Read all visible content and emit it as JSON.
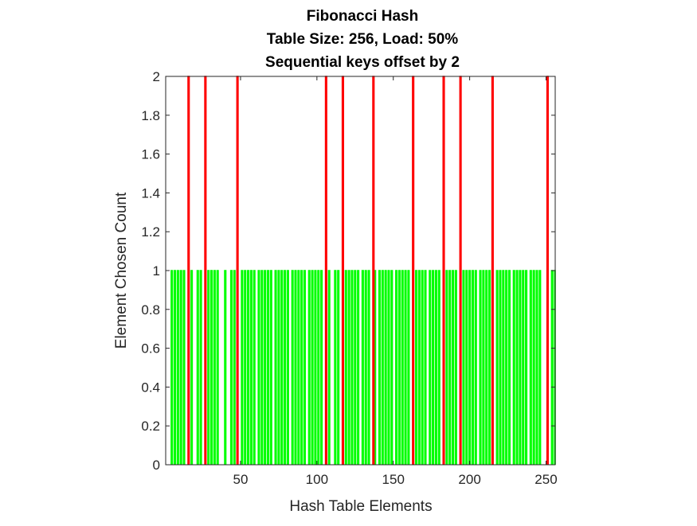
{
  "chart_data": {
    "type": "bar",
    "title": [
      "Fibonacci Hash",
      "Table Size: 256, Load: 50%",
      "Sequential keys offset by 2"
    ],
    "xlabel": "Hash Table Elements",
    "ylabel": "Element Chosen Count",
    "xlim": [
      1,
      256
    ],
    "ylim": [
      0,
      2
    ],
    "xticks": [
      50,
      100,
      150,
      200,
      250
    ],
    "xtick_labels": [
      "50",
      "100",
      "150",
      "200",
      "250"
    ],
    "yticks": [
      0,
      0.2,
      0.4,
      0.6,
      0.8,
      1,
      1.2,
      1.4,
      1.6,
      1.8,
      2
    ],
    "ytick_labels": [
      "0",
      "0.2",
      "0.4",
      "0.6",
      "0.8",
      "1",
      "1.2",
      "1.4",
      "1.6",
      "1.8",
      "2"
    ],
    "grid": false,
    "legend": "none",
    "bar_width_fraction": 0.5,
    "series": [
      {
        "color": "#00ff00",
        "description_value": 1,
        "x": [
          5,
          7,
          9,
          11,
          13,
          18,
          22,
          24,
          29,
          31,
          33,
          35,
          40,
          44,
          46,
          51,
          53,
          55,
          57,
          59,
          62,
          64,
          66,
          68,
          70,
          73,
          75,
          77,
          79,
          81,
          84,
          86,
          88,
          90,
          92,
          95,
          97,
          99,
          101,
          103,
          108,
          112,
          114,
          119,
          121,
          123,
          125,
          127,
          130,
          132,
          134,
          138,
          141,
          143,
          145,
          147,
          149,
          152,
          154,
          156,
          158,
          160,
          165,
          167,
          169,
          171,
          174,
          176,
          178,
          180,
          185,
          187,
          189,
          191,
          196,
          198,
          200,
          202,
          204,
          207,
          209,
          211,
          213,
          218,
          220,
          222,
          224,
          226,
          229,
          231,
          233,
          235,
          237,
          240,
          242,
          244,
          246,
          254,
          256
        ],
        "values": [
          1,
          1,
          1,
          1,
          1,
          1,
          1,
          1,
          1,
          1,
          1,
          1,
          1,
          1,
          1,
          1,
          1,
          1,
          1,
          1,
          1,
          1,
          1,
          1,
          1,
          1,
          1,
          1,
          1,
          1,
          1,
          1,
          1,
          1,
          1,
          1,
          1,
          1,
          1,
          1,
          1,
          1,
          1,
          1,
          1,
          1,
          1,
          1,
          1,
          1,
          1,
          1,
          1,
          1,
          1,
          1,
          1,
          1,
          1,
          1,
          1,
          1,
          1,
          1,
          1,
          1,
          1,
          1,
          1,
          1,
          1,
          1,
          1,
          1,
          1,
          1,
          1,
          1,
          1,
          1,
          1,
          1,
          1,
          1,
          1,
          1,
          1,
          1,
          1,
          1,
          1,
          1,
          1,
          1,
          1,
          1,
          1,
          1,
          1
        ]
      },
      {
        "color": "#ff0000",
        "x": [
          16,
          27,
          48,
          106,
          117,
          137,
          163,
          183,
          194,
          215,
          251
        ],
        "values": [
          2,
          2,
          2,
          2,
          2,
          2,
          2,
          2,
          2,
          2,
          2
        ]
      }
    ]
  }
}
